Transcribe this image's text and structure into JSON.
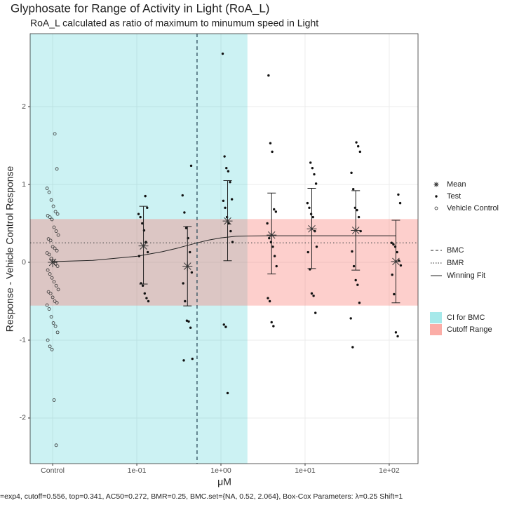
{
  "chart_data": {
    "type": "dose-response",
    "title": "Glyphosate for Range of Activity in Light (RoA_L)",
    "subtitle": "RoA_L calculated as ratio of maximum to minumum speed in Light",
    "x_label": "μM",
    "y_label": "Response - Vehicle Control Response",
    "footer": "=exp4, cutoff=0.556, top=0.341, AC50=0.272, BMR=0.25, BMC.set={NA, 0.52, 2.064}, Box-Cox Parameters: λ=0.25 Shift=1",
    "xlog": true,
    "xlim": [
      0.0054,
      220
    ],
    "ylim": [
      -2.586,
      2.937
    ],
    "xticks": [
      {
        "value": 0.01,
        "label": "Control"
      },
      {
        "value": 0.1,
        "label": "1e-01"
      },
      {
        "value": 1,
        "label": "1e+00"
      },
      {
        "value": 10,
        "label": "1e+01"
      },
      {
        "value": 100,
        "label": "1e+02"
      }
    ],
    "yticks": [
      -2,
      -1,
      0,
      1,
      2
    ],
    "grid": true,
    "ci_bmc": {
      "name": "CI for BMC",
      "range": [
        null,
        2.064
      ],
      "color": "#00bfc4"
    },
    "cutoff": {
      "name": "Cutoff Range",
      "range": [
        -0.556,
        0.556
      ],
      "color": "#f8766d"
    },
    "bmc": {
      "name": "BMC",
      "value": 0.52
    },
    "bmr": {
      "name": "BMR",
      "value": 0.25
    },
    "vehicle_control": {
      "name": "Vehicle Control",
      "x": 0.01,
      "values": [
        1.65,
        1.2,
        0.95,
        0.9,
        0.8,
        0.72,
        0.65,
        0.62,
        0.6,
        0.58,
        0.55,
        0.45,
        0.4,
        0.35,
        0.3,
        0.28,
        0.2,
        0.18,
        0.15,
        0.12,
        0.1,
        0.05,
        0.02,
        -0.02,
        -0.05,
        -0.1,
        -0.15,
        -0.2,
        -0.25,
        -0.3,
        -0.35,
        -0.38,
        -0.4,
        -0.45,
        -0.5,
        -0.52,
        -0.55,
        -0.6,
        -0.7,
        -0.78,
        -0.82,
        -0.9,
        -1.0,
        -1.08,
        -1.12,
        -1.77,
        -2.35
      ]
    },
    "test": {
      "name": "Test",
      "groups": [
        {
          "x": 0.12,
          "values": [
            0.85,
            0.7,
            0.62,
            0.58,
            0.5,
            0.41,
            0.26,
            0.13,
            0.08,
            -0.27,
            -0.3,
            -0.4,
            -0.46,
            -0.5
          ]
        },
        {
          "x": 0.4,
          "values": [
            1.24,
            0.86,
            0.64,
            0.44,
            0.31,
            0.13,
            -0.13,
            -0.27,
            -0.5,
            -0.75,
            -0.76,
            -0.84,
            -1.24,
            -1.26
          ]
        },
        {
          "x": 1.2,
          "values": [
            2.68,
            1.36,
            1.21,
            1.17,
            1.03,
            0.81,
            0.79,
            0.7,
            0.58,
            0.5,
            0.4,
            0.26,
            -0.8,
            -0.83,
            -1.68
          ]
        },
        {
          "x": 4,
          "values": [
            2.4,
            1.53,
            1.42,
            0.68,
            0.65,
            0.5,
            0.31,
            0.26,
            0.2,
            0.08,
            -0.05,
            -0.46,
            -0.5,
            -0.77,
            -0.82
          ]
        },
        {
          "x": 12,
          "values": [
            1.28,
            1.21,
            1.13,
            1.01,
            0.76,
            0.7,
            0.62,
            0.58,
            0.4,
            0.2,
            0.13,
            -0.09,
            -0.4,
            -0.43,
            -0.65
          ]
        },
        {
          "x": 40,
          "values": [
            1.54,
            1.49,
            1.42,
            1.15,
            0.94,
            0.7,
            0.67,
            0.58,
            0.4,
            0.14,
            -0.05,
            -0.23,
            -0.29,
            -0.52,
            -0.72,
            -1.09
          ]
        },
        {
          "x": 120,
          "values": [
            0.87,
            0.76,
            0.25,
            0.23,
            0.2,
            0.13,
            0.02,
            -0.04,
            -0.16,
            -0.41,
            -0.9,
            -0.95
          ]
        }
      ]
    },
    "mean": {
      "name": "Mean",
      "x": [
        0.01,
        0.12,
        0.4,
        1.2,
        4,
        12,
        40,
        120
      ],
      "values": [
        0.0,
        0.21,
        -0.05,
        0.53,
        0.35,
        0.43,
        0.41,
        0.01
      ],
      "lower": [
        null,
        -0.28,
        -0.56,
        0.02,
        -0.15,
        -0.08,
        -0.1,
        -0.52
      ],
      "upper": [
        null,
        0.72,
        0.46,
        1.05,
        0.89,
        0.95,
        0.92,
        0.54
      ]
    },
    "fit": {
      "name": "Winning Fit",
      "x": [
        0.01,
        0.03,
        0.1,
        0.2,
        0.3,
        0.5,
        0.7,
        1,
        1.5,
        2,
        4,
        10,
        120
      ],
      "values": [
        0.009,
        0.025,
        0.077,
        0.136,
        0.18,
        0.245,
        0.284,
        0.314,
        0.334,
        0.338,
        0.341,
        0.341,
        0.341
      ]
    }
  }
}
